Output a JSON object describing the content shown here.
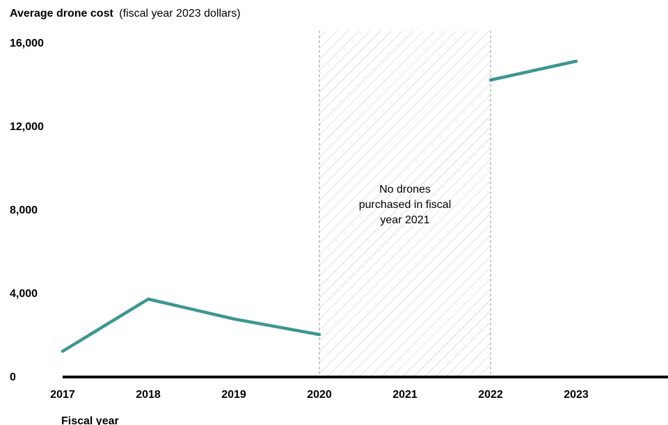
{
  "chart_data": {
    "type": "line",
    "ylabel_bold": "Average drone cost",
    "ylabel_rest": "(fiscal year 2023 dollars)",
    "xlabel": "Fiscal year",
    "x": [
      2017,
      2018,
      2019,
      2020,
      2021,
      2022,
      2023
    ],
    "x_tick_labels": [
      "2017",
      "2018",
      "2019",
      "2020",
      "2021",
      "2022",
      "2023"
    ],
    "y_ticks": [
      0,
      4000,
      8000,
      12000,
      16000
    ],
    "y_tick_labels": [
      "0",
      "4,000",
      "8,000",
      "12,000",
      "16,000"
    ],
    "ylim": [
      0,
      16000
    ],
    "series": [
      {
        "segment": "before",
        "points": [
          [
            2017,
            1200
          ],
          [
            2018,
            3700
          ],
          [
            2019,
            2750
          ],
          [
            2020,
            2000
          ]
        ]
      },
      {
        "segment": "after",
        "points": [
          [
            2022,
            14200
          ],
          [
            2023,
            15100
          ]
        ]
      }
    ],
    "shaded_region": {
      "x_start": 2020,
      "x_end": 2022
    },
    "annotation": [
      "No drones",
      "purchased in fiscal",
      "year 2021"
    ],
    "line_color": "#3d9690",
    "grid": false
  }
}
